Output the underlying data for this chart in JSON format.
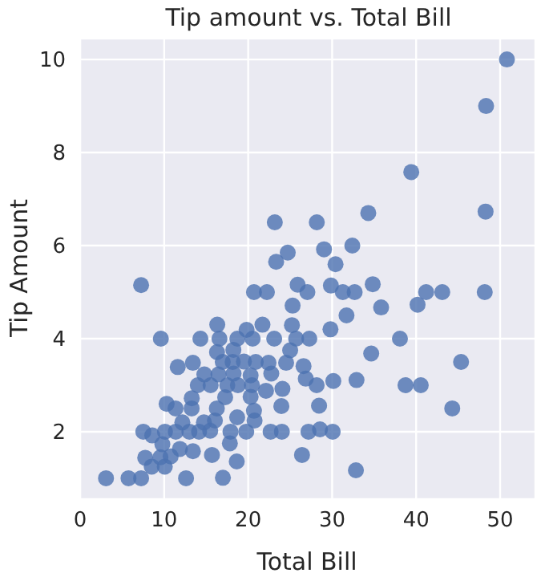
{
  "chart_data": {
    "type": "scatter",
    "title": "Tip amount vs. Total Bill",
    "xlabel": "Total Bill",
    "ylabel": "Tip Amount",
    "xlim": [
      -0.2,
      54.2
    ],
    "xticks": [
      0,
      10,
      20,
      30,
      40,
      50
    ],
    "ylim": [
      0.55,
      10.45
    ],
    "yticks": [
      2,
      4,
      6,
      8,
      10
    ],
    "grid": true,
    "marker": "circle",
    "series": [
      {
        "color": "#4c72b0",
        "x": [
          16.99,
          25.29,
          14.78,
          16.29,
          16.97,
          20.29,
          39.42,
          21.7,
          9.55,
          20.69,
          18.69,
          31.27,
          16.04,
          30.4,
          22.23,
          32.4,
          28.55,
          10.29,
          19.49,
          26.41,
          48.27,
          20.29,
          3.07,
          26.86,
          14.73,
          32.68,
          34.83,
          24.71,
          5.75,
          16.32,
          22.75,
          40.17,
          27.28,
          11.35,
          44.3,
          22.42,
          25.21,
          18.24,
          14.31,
          14,
          7.25,
          38.07,
          23.95,
          25.71,
          24.08,
          29.8,
          11.38,
          18.26,
          8.51,
          14.15,
          34.3,
          41.19,
          27.05,
          18.64,
          11.87,
          9.78,
          7.51,
          17.26,
          19.77,
          29.85,
          48.17,
          25,
          17.51,
          24.52,
          20.76,
          31.71,
          50.81,
          7.25,
          32.9,
          17.89,
          9.6,
          34.65,
          23.33,
          45.35,
          23.17,
          40.55,
          20.69,
          20.9,
          18.15,
          23.1,
          15.69,
          19.81,
          28.44,
          15.48,
          16.58,
          43.11,
          18.71,
          13,
          20.53,
          16.47,
          26.59,
          38.73,
          30.06,
          25.89,
          48.33,
          13.27,
          28.17,
          28.15,
          7.74,
          30.14,
          12.16,
          13.42,
          8.58,
          13.42,
          16.27,
          10.09,
          20.45,
          13.28,
          22.12,
          24.01,
          11.61,
          10.77,
          15.53,
          10.07,
          12.6,
          32.83,
          35.83,
          29.03,
          27.18,
          22.67,
          17.82,
          18.78
        ],
        "values": [
          1.01,
          4.71,
          3.23,
          3.71,
          3.5,
          2.75,
          7.58,
          4.3,
          1.45,
          2.45,
          2.31,
          5,
          2.24,
          5.6,
          5,
          6,
          2.05,
          2.6,
          3.51,
          1.5,
          6.73,
          3.21,
          1,
          3.14,
          2.2,
          5,
          5.17,
          5.85,
          1,
          4.3,
          3.25,
          4.73,
          4,
          2.5,
          2.5,
          3.48,
          4.29,
          3.76,
          4,
          3,
          1,
          4,
          2.55,
          4,
          2.92,
          4.2,
          2,
          3.25,
          1.25,
          2,
          6.7,
          5,
          5,
          1.36,
          1.63,
          1.73,
          2,
          2.74,
          2,
          5.14,
          5,
          3.75,
          3,
          3.48,
          2.24,
          4.5,
          10,
          5.15,
          3.11,
          2,
          4,
          3.68,
          5.65,
          3.5,
          6.5,
          3,
          5,
          3.5,
          3.5,
          4,
          1.5,
          4.19,
          2.56,
          2.02,
          4,
          5,
          4,
          2,
          4,
          3.23,
          3.41,
          3,
          2,
          5.16,
          9,
          2.5,
          6.5,
          3,
          1.44,
          3.09,
          2.2,
          3.48,
          1.92,
          1.58,
          2.5,
          2,
          3,
          2.72,
          2.88,
          2,
          3.39,
          1.47,
          3,
          1.25,
          1,
          1.17,
          4.67,
          5.92,
          2,
          2,
          1.75,
          3
        ]
      }
    ]
  }
}
